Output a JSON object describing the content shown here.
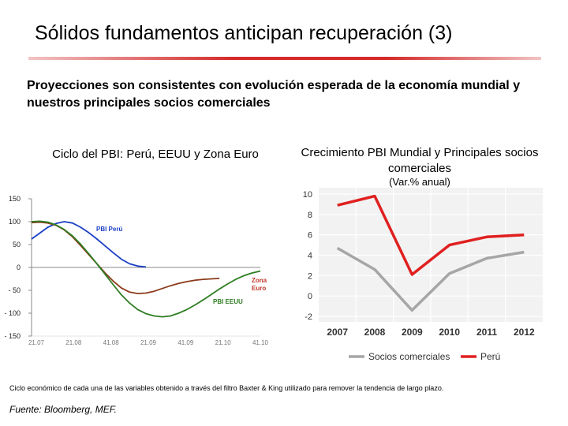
{
  "slide": {
    "title": "Sólidos fundamentos anticipan recuperación (3)",
    "subtitle": "Proyecciones son consistentes con evolución esperada de la economía mundial y nuestros principales socios comerciales",
    "note": "Ciclo económico de cada una de las variables obtenido a través del filtro Baxter & King utilizado para remover la tendencia de largo plazo.",
    "source": "Fuente: Bloomberg, MEF."
  },
  "colors": {
    "peru_blue": "#1a3fc4",
    "zona_euro": "#8b3a1a",
    "eeuu_green": "#2e7d22",
    "peru_red": "#e02020",
    "socios_gray": "#a6a6a6",
    "zona_label": "#c0392b"
  },
  "chart_data": [
    {
      "type": "line",
      "title": "Ciclo del PBI: Perú, EEUU y Zona Euro",
      "x_ticks": [
        "21.07",
        "21.08",
        "41.08",
        "21.09",
        "41.09",
        "21.10",
        "41.10"
      ],
      "y_ticks": [
        "150",
        "100",
        "50",
        "0",
        "- 50",
        "- 100",
        "- 150"
      ],
      "ylim": [
        -150,
        150
      ],
      "x_points": [
        0,
        0.5,
        1,
        1.5,
        2,
        2.5,
        3,
        3.5,
        4,
        4.5,
        5,
        5.5,
        6,
        6.5,
        7,
        7.5,
        8,
        8.5,
        9,
        9.5,
        10,
        10.5,
        11,
        11.5,
        12,
        12.5,
        13,
        13.5,
        14
      ],
      "series": [
        {
          "name": "PBI Perú",
          "label": "PBI Perú",
          "values": [
            62,
            75,
            88,
            96,
            100,
            97,
            88,
            76,
            62,
            47,
            32,
            18,
            8,
            3,
            1
          ]
        },
        {
          "name": "Zona Euro",
          "label": "Zona Euro",
          "values": [
            98,
            99,
            97,
            92,
            82,
            67,
            48,
            28,
            8,
            -12,
            -30,
            -45,
            -54,
            -57,
            -56,
            -52,
            -46,
            -40,
            -35,
            -31,
            -28,
            -26,
            -25,
            -24
          ]
        },
        {
          "name": "PBI EEUU",
          "label": "PBI EEUU",
          "values": [
            100,
            101,
            99,
            93,
            83,
            69,
            51,
            30,
            8,
            -15,
            -38,
            -60,
            -78,
            -92,
            -101,
            -106,
            -108,
            -106,
            -100,
            -92,
            -82,
            -71,
            -59,
            -47,
            -36,
            -26,
            -18,
            -12,
            -8
          ]
        }
      ]
    },
    {
      "type": "line",
      "title": "Crecimiento PBI Mundial y Principales socios comerciales",
      "unit": "(Var.% anual)",
      "categories": [
        "2007",
        "2008",
        "2009",
        "2010",
        "2011",
        "2012"
      ],
      "y_ticks": [
        "10",
        "8",
        "6",
        "4",
        "2",
        "0",
        "-2"
      ],
      "ylim": [
        -2,
        10
      ],
      "series": [
        {
          "name": "Socios comerciales",
          "values": [
            4.7,
            2.6,
            -1.4,
            2.2,
            3.7,
            4.3
          ]
        },
        {
          "name": "Perú",
          "values": [
            8.9,
            9.8,
            2.1,
            5.0,
            5.8,
            6.0
          ]
        }
      ]
    }
  ]
}
